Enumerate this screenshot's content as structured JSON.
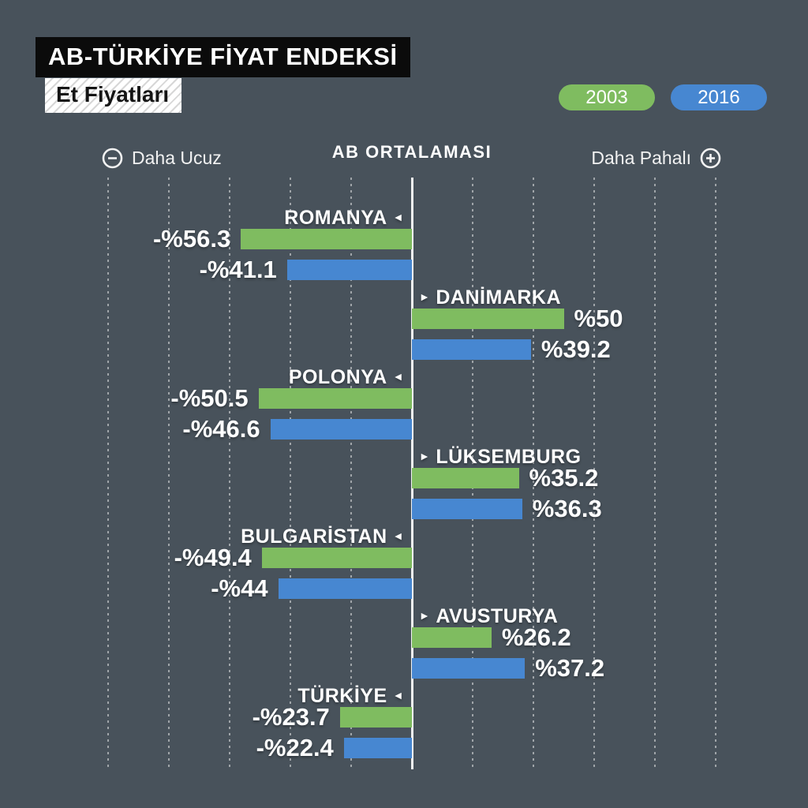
{
  "header": {
    "title": "AB-TÜRKİYE FİYAT ENDEKSİ",
    "subtitle": "Et Fiyatları"
  },
  "legend": {
    "items": [
      {
        "label": "2003",
        "color": "#7FBC60"
      },
      {
        "label": "2016",
        "color": "#4787D1"
      }
    ]
  },
  "axis": {
    "left_label": "Daha Ucuz",
    "center_label": "AB ORTALAMASI",
    "right_label": "Daha Pahalı",
    "left_icon": "circle-minus-icon",
    "right_icon": "circle-plus-icon"
  },
  "colors": {
    "background": "#48525B",
    "green_2003": "#7FBC60",
    "blue_2016": "#4787D1",
    "title_bg": "#0B0B0B",
    "text": "#FFFFFF",
    "gridline": "rgba(255,255,255,0.48)",
    "centerline": "#F2F2F2"
  },
  "chart_data": {
    "type": "bar",
    "orientation": "horizontal-diverging",
    "title": "AB-TÜRKİYE FİYAT ENDEKSİ — Et Fiyatları",
    "unit": "% vs AB ortalaması",
    "xlim": [
      -100,
      100
    ],
    "gridline_step": 20,
    "grid": true,
    "legend_position": "top-right",
    "categories": [
      "ROMANYA",
      "DANİMARKA",
      "POLONYA",
      "LÜKSEMBURG",
      "BULGARİSTAN",
      "AVUSTURYA",
      "TÜRKİYE"
    ],
    "series": [
      {
        "name": "2003",
        "color": "#7FBC60",
        "values": [
          -56.3,
          50,
          -50.5,
          35.2,
          -49.4,
          26.2,
          -23.7
        ]
      },
      {
        "name": "2016",
        "color": "#4787D1",
        "values": [
          -41.1,
          39.2,
          -46.6,
          36.3,
          -44,
          37.2,
          -22.4
        ]
      }
    ],
    "value_labels": [
      {
        "v2003": "-%56.3",
        "v2016": "-%41.1"
      },
      {
        "v2003": "%50",
        "v2016": "%39.2"
      },
      {
        "v2003": "-%50.5",
        "v2016": "-%46.6"
      },
      {
        "v2003": "%35.2",
        "v2016": "%36.3"
      },
      {
        "v2003": "-%49.4",
        "v2016": "-%44"
      },
      {
        "v2003": "%26.2",
        "v2016": "%37.2"
      },
      {
        "v2003": "-%23.7",
        "v2016": "-%22.4"
      }
    ],
    "arrows": {
      "left_side": "◄",
      "right_side": "►"
    }
  }
}
